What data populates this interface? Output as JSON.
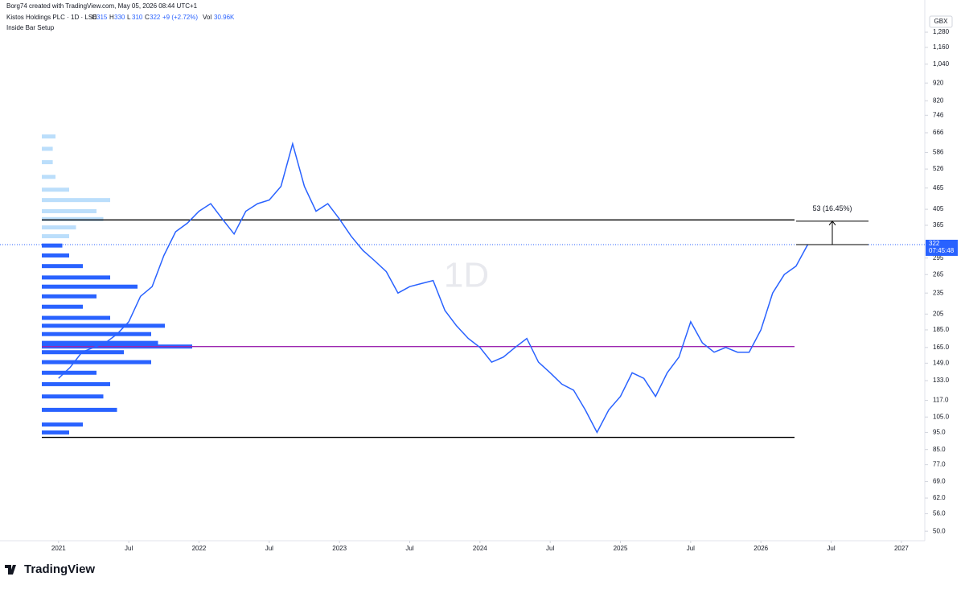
{
  "chart_data": {
    "type": "line",
    "header": "Borg74 created with TradingView.com, May 05, 2026 08:44 UTC+1",
    "title": "Kistos Holdings PLC · 1D · LSE",
    "quote": [
      {
        "label": "O",
        "value": 315
      },
      {
        "label": "H",
        "value": 330
      },
      {
        "label": "L",
        "value": 310
      },
      {
        "label": "C",
        "value": 322
      }
    ],
    "change": "+9 (+2.72%)",
    "volume_label": "Vol",
    "volume": "30.96K",
    "subtitle": "Inside Bar Setup",
    "watermark": "1D",
    "currency": "GBX",
    "brand": "TradingView",
    "color": "#2962ff",
    "log_scale": true,
    "x": [
      "2021-01",
      "2021-02",
      "2021-03",
      "2021-04",
      "2021-05",
      "2021-06",
      "2021-07",
      "2021-08",
      "2021-09",
      "2021-10",
      "2021-11",
      "2021-12",
      "2022-01",
      "2022-02",
      "2022-03",
      "2022-04",
      "2022-05",
      "2022-06",
      "2022-07",
      "2022-08",
      "2022-09",
      "2022-10",
      "2022-11",
      "2022-12",
      "2023-01",
      "2023-02",
      "2023-03",
      "2023-04",
      "2023-05",
      "2023-06",
      "2023-07",
      "2023-08",
      "2023-09",
      "2023-10",
      "2023-11",
      "2023-12",
      "2024-01",
      "2024-02",
      "2024-03",
      "2024-04",
      "2024-05",
      "2024-06",
      "2024-07",
      "2024-08",
      "2024-09",
      "2024-10",
      "2024-11",
      "2024-12",
      "2025-01",
      "2025-02",
      "2025-03",
      "2025-04",
      "2025-05",
      "2025-06",
      "2025-07",
      "2025-08",
      "2025-09",
      "2025-10",
      "2025-11",
      "2025-12",
      "2026-01",
      "2026-02",
      "2026-03",
      "2026-04",
      "2026-05"
    ],
    "values": [
      135,
      145,
      160,
      165,
      170,
      180,
      195,
      230,
      245,
      300,
      350,
      370,
      400,
      420,
      380,
      345,
      400,
      420,
      430,
      470,
      620,
      470,
      400,
      420,
      380,
      340,
      310,
      290,
      270,
      235,
      245,
      250,
      255,
      210,
      190,
      175,
      165,
      150,
      155,
      165,
      175,
      150,
      140,
      130,
      125,
      110,
      95,
      110,
      120,
      140,
      135,
      120,
      140,
      155,
      195,
      170,
      160,
      165,
      160,
      160,
      185,
      235,
      265,
      280,
      322
    ],
    "xlim": [
      "2020-08",
      "2027-03"
    ],
    "xticks": [
      {
        "value": "2021-01",
        "label": "2021"
      },
      {
        "value": "2021-07",
        "label": "Jul"
      },
      {
        "value": "2022-01",
        "label": "2022"
      },
      {
        "value": "2022-07",
        "label": "Jul"
      },
      {
        "value": "2023-01",
        "label": "2023"
      },
      {
        "value": "2023-07",
        "label": "Jul"
      },
      {
        "value": "2024-01",
        "label": "2024"
      },
      {
        "value": "2024-07",
        "label": "Jul"
      },
      {
        "value": "2025-01",
        "label": "2025"
      },
      {
        "value": "2025-07",
        "label": "Jul"
      },
      {
        "value": "2026-01",
        "label": "2026"
      },
      {
        "value": "2026-07",
        "label": "Jul"
      },
      {
        "value": "2027-01",
        "label": "2027"
      }
    ],
    "ylim": [
      47,
      1578
    ],
    "yticks": [
      {
        "value": 50,
        "label": "50.0"
      },
      {
        "value": 56,
        "label": "56.0"
      },
      {
        "value": 62,
        "label": "62.0"
      },
      {
        "value": 69,
        "label": "69.0"
      },
      {
        "value": 77,
        "label": "77.0"
      },
      {
        "value": 85,
        "label": "85.0"
      },
      {
        "value": 95,
        "label": "95.0"
      },
      {
        "value": 105,
        "label": "105.0"
      },
      {
        "value": 117,
        "label": "117.0"
      },
      {
        "value": 133,
        "label": "133.0"
      },
      {
        "value": 149,
        "label": "149.0"
      },
      {
        "value": 165,
        "label": "165.0"
      },
      {
        "value": 185,
        "label": "185.0"
      },
      205,
      235,
      265,
      295,
      365,
      405,
      465,
      526,
      586,
      666,
      746,
      820,
      920,
      {
        "value": 1040,
        "label": "1,040"
      },
      {
        "value": 1160,
        "label": "1,160"
      },
      {
        "value": 1280,
        "label": "1,280"
      }
    ],
    "hlines": [
      {
        "value": 378,
        "color": "#000000"
      },
      {
        "value": 92,
        "color": "#000000"
      },
      {
        "value": 166,
        "color": "#9c27b0"
      }
    ],
    "measure": {
      "from": 322,
      "to": 375,
      "label": "53 (16.45%)"
    },
    "last_price": {
      "value": 322,
      "countdown": "07:45:48"
    },
    "volume_profile": {
      "levels": [
        650,
        600,
        550,
        500,
        460,
        430,
        400,
        380,
        360,
        340,
        320,
        300,
        280,
        260,
        245,
        230,
        215,
        200,
        190,
        180,
        170,
        166,
        160,
        150,
        140,
        130,
        120,
        110,
        100,
        95
      ],
      "volumes": [
        10,
        8,
        8,
        10,
        20,
        50,
        40,
        45,
        25,
        20,
        15,
        20,
        30,
        50,
        70,
        40,
        30,
        50,
        90,
        80,
        85,
        110,
        60,
        80,
        40,
        50,
        45,
        55,
        30,
        20
      ],
      "colors": [
        "#bbdefb",
        "#2962ff"
      ]
    }
  }
}
